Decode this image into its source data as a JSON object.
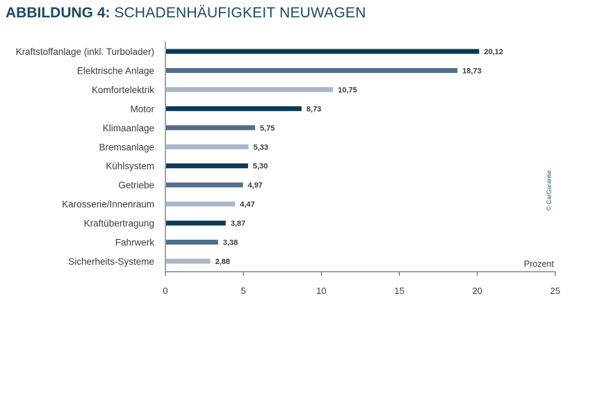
{
  "header": {
    "title_prefix": "ABBILDUNG 4:",
    "title_main": "SCHADENHÄUFIGKEIT NEUWAGEN"
  },
  "credit": "© CarGarantie",
  "colors": {
    "dark": "#0b3a56",
    "medium": "#4f6e8d",
    "light": "#a9b5c8",
    "title": "#1b4a63",
    "axis": "#4a4a4a"
  },
  "chart_data": {
    "type": "bar",
    "orientation": "horizontal",
    "title": "ABBILDUNG 4: SCHADENHÄUFIGKEIT NEUWAGEN",
    "xlabel": "Prozent",
    "ylabel": "",
    "xlim": [
      0,
      25
    ],
    "xticks": [
      0,
      5,
      10,
      15,
      20,
      25
    ],
    "grid": false,
    "categories": [
      "Kraftstoffanlage (inkl. Turbolader)",
      "Elektrische Anlage",
      "Komfortelektrik",
      "Motor",
      "Klimaanlage",
      "Bremsanlage",
      "Kühlsystem",
      "Getriebe",
      "Karosserie/Innenraum",
      "Kraftübertragung",
      "Fahrwerk",
      "Sicherheits-Systeme"
    ],
    "values": [
      20.12,
      18.73,
      10.75,
      8.73,
      5.75,
      5.33,
      5.3,
      4.97,
      4.47,
      3.87,
      3.38,
      2.88
    ],
    "value_labels": [
      "20,12",
      "18,73",
      "10,75",
      "8,73",
      "5,75",
      "5,33",
      "5,30",
      "4,97",
      "4,47",
      "3,87",
      "3,38",
      "2,88"
    ],
    "bar_color_cycle": [
      "dark",
      "medium",
      "light"
    ]
  }
}
